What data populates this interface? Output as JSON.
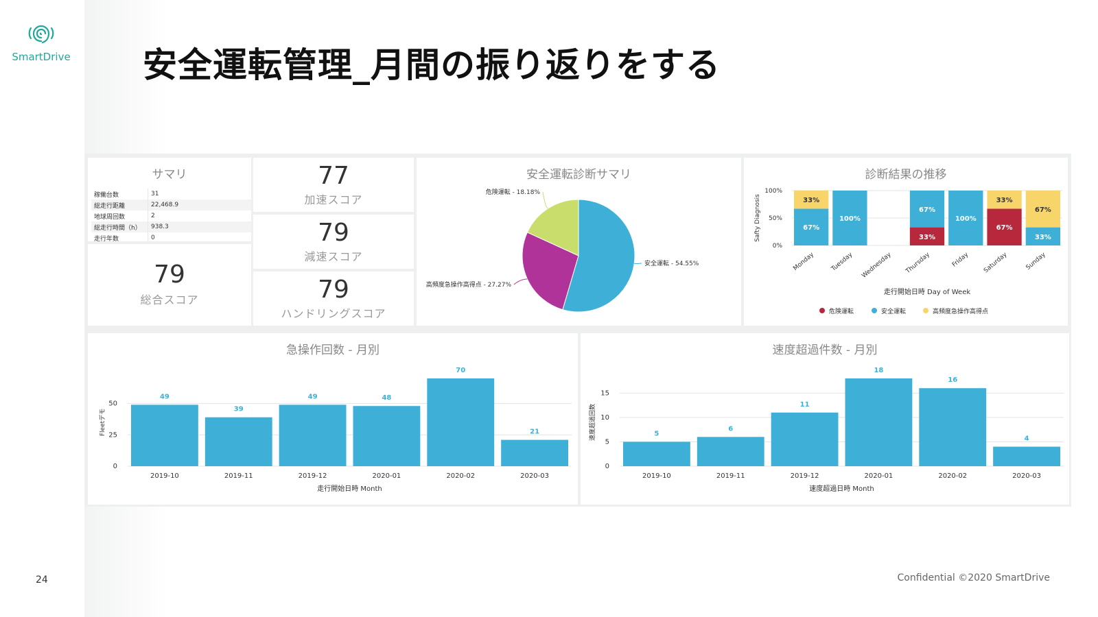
{
  "slide": {
    "logo_text": "SmartDrive",
    "title": "安全運転管理_月間の振り返りをする",
    "page_number": "24",
    "footer": "Confidential ©2020 SmartDrive"
  },
  "summary": {
    "title": "サマリ",
    "rows": [
      {
        "label": "稼働台数",
        "value": "31"
      },
      {
        "label": "総走行距離",
        "value": "22,468.9"
      },
      {
        "label": "地球周回数",
        "value": "2"
      },
      {
        "label": "総走行時間（h）",
        "value": "938.3"
      },
      {
        "label": "走行年数",
        "value": "0"
      }
    ]
  },
  "total_score": {
    "value": "79",
    "label": "総合スコア"
  },
  "scores": [
    {
      "value": "77",
      "label": "加速スコア"
    },
    {
      "value": "79",
      "label": "減速スコア"
    },
    {
      "value": "79",
      "label": "ハンドリングスコア"
    }
  ],
  "colors": {
    "blue": "#3eb0d7",
    "red": "#b8283c",
    "yellow": "#f7d56b",
    "magenta": "#b0339a",
    "green": "#c9dd6c"
  },
  "pie_chart": {
    "chart_data": {
      "type": "pie",
      "title": "安全運転診断サマリ",
      "slices": [
        {
          "label": "安全運転",
          "value": 54.55,
          "display": "安全運転 - 54.55%",
          "color": "#3eb0d7"
        },
        {
          "label": "高頻度急操作高得点",
          "value": 27.27,
          "display": "高頻度急操作高得点 - 27.27%",
          "color": "#b0339a"
        },
        {
          "label": "危険運転",
          "value": 18.18,
          "display": "危険運転 - 18.18%",
          "color": "#c9dd6c"
        }
      ]
    }
  },
  "weekly_chart": {
    "chart_data": {
      "type": "bar",
      "stacked": true,
      "title": "診断結果の推移",
      "ylabel": "Safty Diagnosis",
      "xlabel": "走行開始日時 Day of Week",
      "yticks": [
        "0%",
        "50%",
        "100%"
      ],
      "categories": [
        "Monday",
        "Tuesday",
        "Wednesday",
        "Thursday",
        "Friday",
        "Saturday",
        "Sunday"
      ],
      "series": [
        {
          "name": "危険運転",
          "color": "#b8283c",
          "values": [
            0,
            0,
            0,
            33,
            0,
            67,
            0
          ]
        },
        {
          "name": "安全運転",
          "color": "#3eb0d7",
          "values": [
            67,
            100,
            0,
            67,
            100,
            0,
            33
          ]
        },
        {
          "name": "高頻度急操作高得点",
          "color": "#f7d56b",
          "values": [
            33,
            0,
            0,
            0,
            0,
            33,
            67
          ]
        }
      ]
    }
  },
  "sudden_chart": {
    "chart_data": {
      "type": "bar",
      "title": "急操作回数 - 月別",
      "ylabel": "Fleetデモ",
      "xlabel": "走行開始日時 Month",
      "ylim": [
        0,
        70
      ],
      "yticks": [
        0,
        25,
        50
      ],
      "categories": [
        "2019-10",
        "2019-11",
        "2019-12",
        "2020-01",
        "2020-02",
        "2020-03"
      ],
      "values": [
        49,
        39,
        49,
        48,
        70,
        21
      ]
    }
  },
  "speed_chart": {
    "chart_data": {
      "type": "bar",
      "title": "速度超過件数 - 月別",
      "ylabel": "速度超過回数",
      "xlabel": "速度超過日時 Month",
      "ylim": [
        0,
        18
      ],
      "yticks": [
        0,
        5,
        10,
        15
      ],
      "categories": [
        "2019-10",
        "2019-11",
        "2019-12",
        "2020-01",
        "2020-02",
        "2020-03"
      ],
      "values": [
        5,
        6,
        11,
        18,
        16,
        4
      ]
    }
  }
}
